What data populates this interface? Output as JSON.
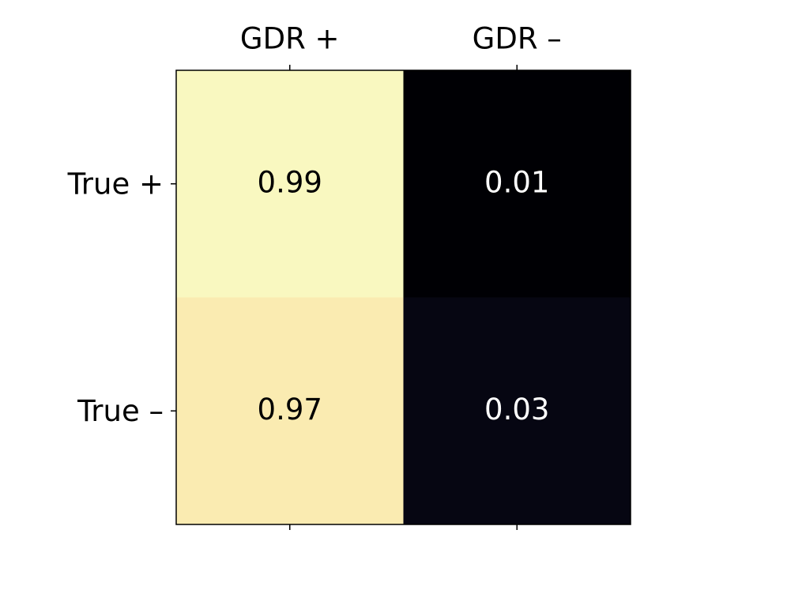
{
  "chart_data": {
    "type": "heatmap",
    "x_categories": [
      "GDR +",
      "GDR –"
    ],
    "y_categories": [
      "True +",
      "True –"
    ],
    "values": [
      [
        0.99,
        0.01
      ],
      [
        0.97,
        0.03
      ]
    ],
    "colors": [
      [
        "#f9f8c0",
        "#000004"
      ],
      [
        "#faebb1",
        "#060612"
      ]
    ]
  }
}
